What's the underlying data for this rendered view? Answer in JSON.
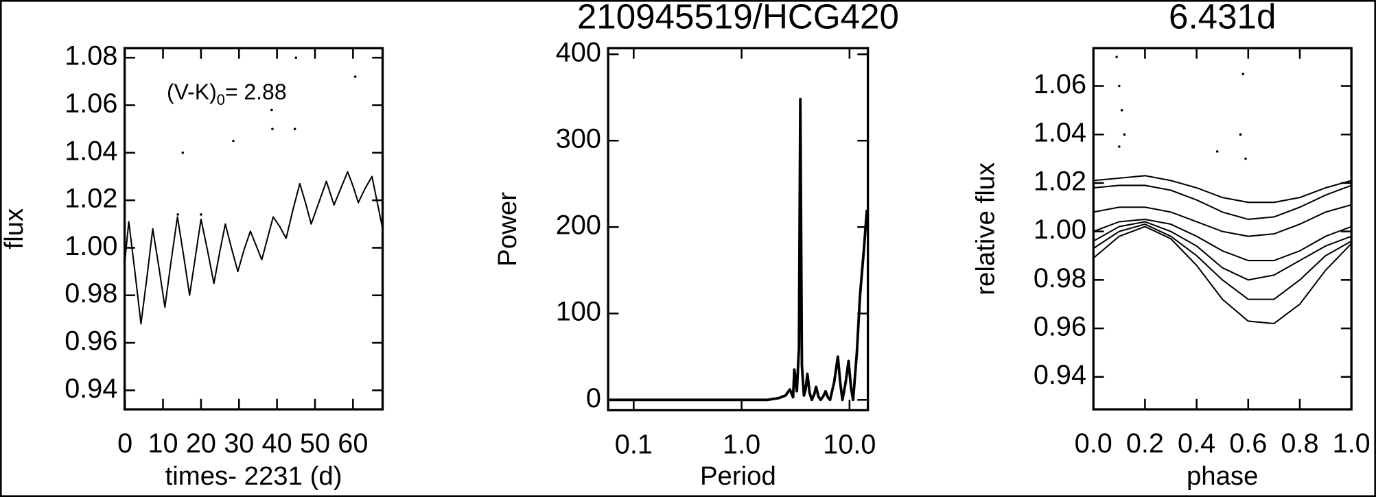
{
  "chart_data": [
    {
      "type": "line",
      "xlabel": "times- 2231 (d)",
      "ylabel": "flux",
      "annotation": "(V-K)",
      "annotation_subscript": "0",
      "annotation_value": "= 2.88",
      "xlim": [
        -0.1,
        67.8
      ],
      "xticks": [
        0,
        10,
        20,
        30,
        40,
        50,
        60
      ],
      "ylim": [
        0.932,
        1.084
      ],
      "yticks": [
        0.94,
        0.96,
        0.98,
        {
          "value": 1.0,
          "label": "1.00"
        },
        1.02,
        1.04,
        1.06,
        1.08
      ],
      "series": [
        {
          "style": "line",
          "color": "#000000",
          "x": [
            0,
            1.0,
            2.6,
            4.2,
            5.8,
            7.3,
            8.9,
            10.5,
            12.1,
            13.8,
            15.4,
            17.0,
            18.5,
            20.0,
            21.7,
            23.4,
            24.9,
            26.4,
            28.0,
            29.7,
            31.3,
            33.0,
            34.5,
            36.0,
            37.5,
            39.0,
            40.7,
            42.4,
            44.2,
            46.0,
            47.5,
            49.0,
            51.0,
            53.0,
            54.0,
            55.0,
            56.8,
            58.6,
            60.0,
            61.4,
            63.2,
            65.0,
            66.4,
            67.8
          ],
          "values": [
            0.995,
            1.011,
            0.99,
            0.968,
            0.988,
            1.008,
            0.992,
            0.975,
            0.994,
            1.013,
            0.997,
            0.98,
            0.996,
            1.012,
            0.999,
            0.985,
            0.998,
            1.01,
            1.0,
            0.99,
            0.999,
            1.007,
            1.001,
            0.995,
            1.004,
            1.013,
            1.009,
            1.004,
            1.016,
            1.027,
            1.019,
            1.01,
            1.019,
            1.028,
            1.023,
            1.018,
            1.025,
            1.032,
            1.026,
            1.019,
            1.025,
            1.03,
            1.019,
            1.008
          ]
        },
        {
          "style": "dots",
          "color": "#000000",
          "x": [
            15.2,
            28.5,
            38.6,
            38.8,
            44.7,
            45.0,
            60.6,
            20.0,
            13.9
          ],
          "values": [
            1.04,
            1.045,
            1.058,
            1.05,
            1.05,
            1.08,
            1.072,
            1.014,
            1.014
          ]
        }
      ]
    },
    {
      "type": "line",
      "title": "210945519/HCG420",
      "xlabel": "Period",
      "ylabel": "Power",
      "xscale": "log",
      "xlim": [
        0.058,
        14.8
      ],
      "xticks": [
        0.1,
        {
          "value": 1.0,
          "label": "1.0"
        },
        {
          "value": 10.0,
          "label": "10.0"
        }
      ],
      "ylim": [
        -12,
        407
      ],
      "yticks": [
        0,
        100,
        200,
        300,
        400
      ],
      "series": [
        {
          "style": "line",
          "color": "#000000",
          "width": 3,
          "x": [
            0.06,
            0.2,
            0.5,
            1.0,
            1.5,
            1.75,
            2.2,
            2.55,
            2.8,
            3.0,
            3.08,
            3.25,
            3.4,
            3.5,
            3.62,
            3.78,
            3.92,
            4.07,
            4.27,
            4.47,
            4.7,
            4.9,
            5.15,
            5.4,
            5.7,
            6.0,
            6.3,
            6.6,
            7.2,
            7.8,
            8.2,
            8.6,
            9.2,
            9.8,
            10.3,
            10.8,
            11.7,
            12.5,
            13.5,
            14.5
          ],
          "values": [
            0,
            0,
            0,
            0,
            0,
            0,
            2,
            5,
            12,
            3,
            35,
            10,
            60,
            348,
            40,
            5,
            12,
            30,
            8,
            0,
            6,
            15,
            4,
            0,
            4,
            10,
            3,
            0,
            20,
            50,
            20,
            0,
            20,
            45,
            15,
            0,
            55,
            120,
            170,
            220
          ]
        }
      ]
    },
    {
      "type": "line",
      "title": "6.431d",
      "xlabel": "phase",
      "ylabel": "relative flux",
      "xlim": [
        0,
        1
      ],
      "xticks": [
        {
          "value": 0.0,
          "label": "0.0"
        },
        0.2,
        0.4,
        0.6,
        0.8,
        {
          "value": 1.0,
          "label": "1.0"
        }
      ],
      "ylim": [
        0.9266,
        1.0756
      ],
      "yticks": [
        0.94,
        0.96,
        0.98,
        {
          "value": 1.0,
          "label": "1.00"
        },
        1.02,
        1.04,
        1.06
      ],
      "series": [
        {
          "style": "line",
          "color": "#000000",
          "x": [
            0,
            0.1,
            0.2,
            0.3,
            0.4,
            0.5,
            0.6,
            0.7,
            0.8,
            0.9,
            1.0
          ],
          "values": [
            1.021,
            1.022,
            1.023,
            1.021,
            1.018,
            1.014,
            1.012,
            1.012,
            1.014,
            1.018,
            1.021
          ]
        },
        {
          "style": "line",
          "color": "#000000",
          "x": [
            0,
            0.1,
            0.2,
            0.3,
            0.4,
            0.5,
            0.6,
            0.7,
            0.8,
            0.9,
            1.0
          ],
          "values": [
            1.018,
            1.019,
            1.019,
            1.017,
            1.013,
            1.008,
            1.005,
            1.006,
            1.01,
            1.015,
            1.019
          ]
        },
        {
          "style": "line",
          "color": "#000000",
          "x": [
            0,
            0.1,
            0.2,
            0.3,
            0.4,
            0.5,
            0.6,
            0.7,
            0.8,
            0.9,
            1.0
          ],
          "values": [
            1.008,
            1.01,
            1.01,
            1.008,
            1.004,
            1.0,
            0.998,
            0.999,
            1.003,
            1.008,
            1.011
          ]
        },
        {
          "style": "line",
          "color": "#000000",
          "x": [
            0,
            0.1,
            0.2,
            0.3,
            0.4,
            0.5,
            0.6,
            0.7,
            0.8,
            0.9,
            1.0
          ],
          "values": [
            1.0,
            1.004,
            1.005,
            1.003,
            0.998,
            0.992,
            0.988,
            0.988,
            0.992,
            0.998,
            1.002
          ]
        },
        {
          "style": "line",
          "color": "#000000",
          "x": [
            0,
            0.1,
            0.2,
            0.3,
            0.4,
            0.5,
            0.6,
            0.7,
            0.8,
            0.9,
            1.0
          ],
          "values": [
            0.996,
            1.002,
            1.004,
            1.0,
            0.994,
            0.985,
            0.98,
            0.982,
            0.988,
            0.994,
            0.998
          ]
        },
        {
          "style": "line",
          "color": "#000000",
          "x": [
            0,
            0.1,
            0.2,
            0.3,
            0.4,
            0.5,
            0.6,
            0.7,
            0.8,
            0.9,
            1.0
          ],
          "values": [
            0.993,
            1.0,
            1.003,
            0.998,
            0.99,
            0.98,
            0.972,
            0.972,
            0.98,
            0.99,
            0.996
          ]
        },
        {
          "style": "line",
          "color": "#000000",
          "x": [
            0,
            0.1,
            0.2,
            0.3,
            0.4,
            0.5,
            0.6,
            0.7,
            0.8,
            0.9,
            1.0
          ],
          "values": [
            0.989,
            0.998,
            1.002,
            0.997,
            0.986,
            0.972,
            0.963,
            0.962,
            0.97,
            0.984,
            0.995
          ]
        },
        {
          "style": "dots",
          "color": "#000000",
          "x": [
            0.09,
            0.1,
            0.1,
            0.12,
            0.48,
            0.57,
            0.58,
            0.59,
            0.11
          ],
          "values": [
            1.072,
            1.06,
            1.035,
            1.04,
            1.033,
            1.04,
            1.065,
            1.03,
            1.05
          ]
        }
      ]
    }
  ]
}
